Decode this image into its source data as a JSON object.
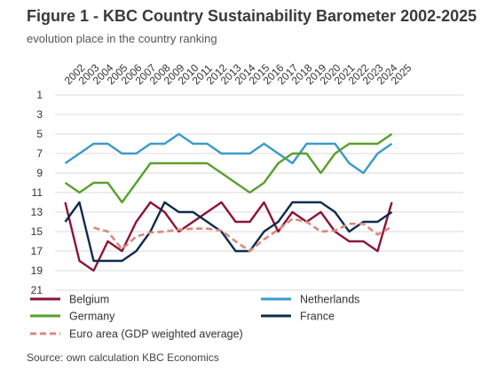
{
  "title": "Figure 1 - KBC Country Sustainability Barometer 2002-2025",
  "subtitle": "evolution place in the country ranking",
  "source": "Source: own calculation KBC Economics",
  "chart_data": {
    "type": "line",
    "title": "Figure 1 - KBC Country Sustainability Barometer 2002-2025",
    "subtitle": "evolution place in the country ranking",
    "categories": [
      "2002",
      "2003",
      "2004",
      "2005",
      "2006",
      "2007",
      "2008",
      "2009",
      "2010",
      "2011",
      "2012",
      "2013",
      "2014",
      "2015",
      "2016",
      "2017",
      "2018",
      "2019",
      "2020",
      "2021",
      "2022",
      "2023",
      "2024",
      "2025"
    ],
    "y_ticks": [
      1,
      3,
      5,
      7,
      9,
      11,
      13,
      15,
      17,
      19,
      21
    ],
    "ylim": [
      1,
      21
    ],
    "y_inverted": true,
    "grid": "horizontal",
    "legend_position": "bottom",
    "series": [
      {
        "name": "Belgium",
        "color": "#8b1538",
        "dash": "solid",
        "values": [
          12,
          18,
          19,
          16,
          17,
          14,
          12,
          13,
          15,
          14,
          13,
          12,
          14,
          14,
          12,
          15,
          13,
          14,
          13,
          15,
          16,
          16,
          17,
          12
        ]
      },
      {
        "name": "Netherlands",
        "color": "#3a9bc9",
        "dash": "solid",
        "values": [
          8,
          7,
          6,
          6,
          7,
          7,
          6,
          6,
          5,
          6,
          6,
          7,
          7,
          7,
          6,
          7,
          8,
          6,
          6,
          6,
          8,
          9,
          7,
          6
        ]
      },
      {
        "name": "Germany",
        "color": "#5aa02c",
        "dash": "solid",
        "values": [
          10,
          11,
          10,
          10,
          12,
          10,
          8,
          8,
          8,
          8,
          8,
          9,
          10,
          11,
          10,
          8,
          7,
          7,
          9,
          7,
          6,
          6,
          6,
          5
        ]
      },
      {
        "name": "France",
        "color": "#0f2b4f",
        "dash": "solid",
        "values": [
          14,
          12,
          18,
          18,
          18,
          17,
          15,
          12,
          13,
          13,
          14,
          15,
          17,
          17,
          15,
          14,
          12,
          12,
          12,
          13,
          15,
          14,
          14,
          13
        ]
      },
      {
        "name": "Euro area (GDP weighted average)",
        "color": "#d9897c",
        "dash": "dashed",
        "values": [
          null,
          null,
          14.6,
          15,
          16.8,
          15.5,
          15.1,
          15,
          14.8,
          14.7,
          14.7,
          14.9,
          16,
          17,
          15.8,
          14.8,
          13.7,
          14,
          15,
          14.9,
          14.2,
          14.2,
          15.3,
          14.5
        ]
      }
    ]
  }
}
